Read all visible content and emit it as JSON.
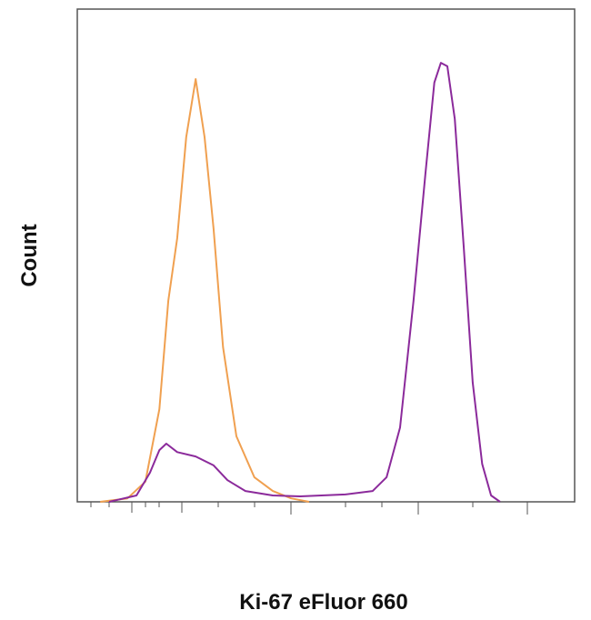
{
  "chart_data": {
    "type": "line",
    "y_label": "Count",
    "x_label": "Ki-67 eFluor 660",
    "xlim": [
      0,
      100
    ],
    "ylim": [
      0,
      100
    ],
    "series": [
      {
        "color": "#f0a050",
        "x": [
          4.6,
          10.1,
          13.7,
          16.5,
          18.3,
          20.1,
          21.9,
          23.8,
          25.6,
          27.4,
          29.3,
          32.0,
          35.6,
          39.3,
          43.0,
          46.6
        ],
        "values": [
          0,
          0.7,
          4.1,
          18.8,
          40.8,
          53.5,
          74.0,
          85.8,
          74.0,
          55.4,
          31.4,
          13.3,
          5.0,
          2.2,
          0.7,
          0
        ]
      },
      {
        "color": "#8b2a9b",
        "x": [
          6.4,
          11.9,
          14.6,
          16.5,
          17.9,
          20.1,
          23.8,
          27.4,
          30.2,
          33.8,
          39.3,
          44.8,
          53.9,
          59.4,
          62.2,
          64.9,
          67.6,
          70.0,
          71.8,
          73.1,
          74.4,
          75.9,
          77.7,
          79.5,
          81.4,
          83.2,
          85.0
        ],
        "values": [
          0,
          1.3,
          5.9,
          10.5,
          11.8,
          10.1,
          9.2,
          7.4,
          4.4,
          2.2,
          1.3,
          1.1,
          1.5,
          2.2,
          5.0,
          15.1,
          40.8,
          66.6,
          85.1,
          89.1,
          88.4,
          77.7,
          51.8,
          24.2,
          7.7,
          1.3,
          0
        ]
      }
    ]
  }
}
